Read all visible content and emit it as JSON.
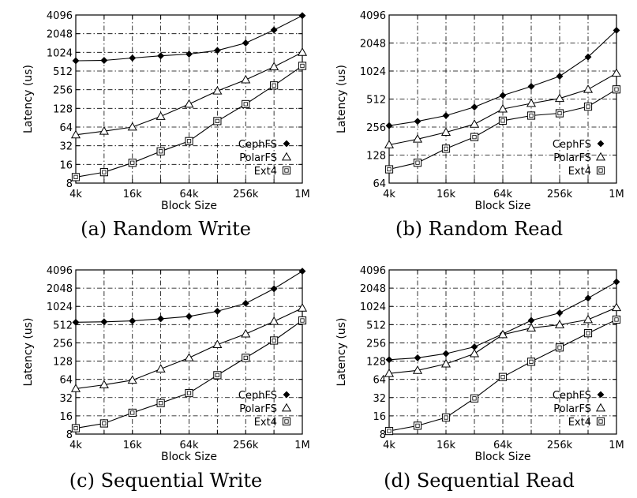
{
  "chart_data": [
    {
      "type": "line",
      "caption": "(a) Random Write",
      "xlabel": "Block Size",
      "ylabel": "Latency (us)",
      "x_scale": "log2",
      "y_scale": "log2",
      "xlim": [
        4,
        1024
      ],
      "ylim": [
        8,
        4096
      ],
      "x_ticks": [
        "4k",
        "16k",
        "64k",
        "256k",
        "1M"
      ],
      "y_ticks": [
        "8",
        "16",
        "32",
        "64",
        "128",
        "256",
        "512",
        "1024",
        "2048",
        "4096"
      ],
      "grid": true,
      "legend_position": "lower-right",
      "x": [
        4,
        8,
        16,
        32,
        64,
        128,
        256,
        512,
        1024
      ],
      "series": [
        {
          "name": "CephFS",
          "marker": "diamond",
          "values": [
            750,
            760,
            830,
            900,
            960,
            1100,
            1450,
            2350,
            4000
          ]
        },
        {
          "name": "PolarFS",
          "marker": "triangle",
          "values": [
            48,
            55,
            64,
            95,
            150,
            245,
            370,
            600,
            1024
          ]
        },
        {
          "name": "Ext4",
          "marker": "square",
          "values": [
            10,
            12,
            17,
            26,
            38,
            80,
            150,
            300,
            620
          ]
        }
      ]
    },
    {
      "type": "line",
      "caption": "(b) Random Read",
      "xlabel": "Block Size",
      "ylabel": "Latency (us)",
      "x_scale": "log2",
      "y_scale": "log2",
      "xlim": [
        4,
        1024
      ],
      "ylim": [
        64,
        4096
      ],
      "x_ticks": [
        "4k",
        "16k",
        "64k",
        "256k",
        "1M"
      ],
      "y_ticks": [
        "64",
        "128",
        "256",
        "512",
        "1024",
        "2048",
        "4096"
      ],
      "grid": true,
      "legend_position": "lower-right",
      "x": [
        4,
        8,
        16,
        32,
        64,
        128,
        256,
        512,
        1024
      ],
      "series": [
        {
          "name": "CephFS",
          "marker": "diamond",
          "values": [
            265,
            295,
            340,
            420,
            560,
            700,
            900,
            1450,
            2800
          ]
        },
        {
          "name": "PolarFS",
          "marker": "triangle",
          "values": [
            165,
            190,
            225,
            275,
            400,
            460,
            520,
            650,
            970
          ]
        },
        {
          "name": "Ext4",
          "marker": "square",
          "values": [
            90,
            106,
            150,
            200,
            300,
            340,
            360,
            425,
            650
          ]
        }
      ]
    },
    {
      "type": "line",
      "caption": "(c) Sequential Write",
      "xlabel": "Block Size",
      "ylabel": "Latency (us)",
      "x_scale": "log2",
      "y_scale": "log2",
      "xlim": [
        4,
        1024
      ],
      "ylim": [
        8,
        4096
      ],
      "x_ticks": [
        "4k",
        "16k",
        "64k",
        "256k",
        "1M"
      ],
      "y_ticks": [
        "8",
        "16",
        "32",
        "64",
        "128",
        "256",
        "512",
        "1024",
        "2048",
        "4096"
      ],
      "grid": true,
      "legend_position": "lower-right",
      "x": [
        4,
        8,
        16,
        32,
        64,
        128,
        256,
        512,
        1024
      ],
      "series": [
        {
          "name": "CephFS",
          "marker": "diamond",
          "values": [
            560,
            570,
            590,
            640,
            700,
            850,
            1150,
            2000,
            3900
          ]
        },
        {
          "name": "PolarFS",
          "marker": "triangle",
          "values": [
            45,
            52,
            62,
            95,
            145,
            240,
            360,
            580,
            960
          ]
        },
        {
          "name": "Ext4",
          "marker": "square",
          "values": [
            10,
            12,
            18,
            26,
            38,
            75,
            145,
            280,
            600
          ]
        }
      ]
    },
    {
      "type": "line",
      "caption": "(d) Sequential Read",
      "xlabel": "Block Size",
      "ylabel": "Latency (us)",
      "x_scale": "log2",
      "y_scale": "log2",
      "xlim": [
        4,
        1024
      ],
      "ylim": [
        8,
        4096
      ],
      "x_ticks": [
        "4k",
        "16k",
        "64k",
        "256k",
        "1M"
      ],
      "y_ticks": [
        "8",
        "16",
        "32",
        "64",
        "128",
        "256",
        "512",
        "1024",
        "2048",
        "4096"
      ],
      "grid": true,
      "legend_position": "lower-right",
      "x": [
        4,
        8,
        16,
        32,
        64,
        128,
        256,
        512,
        1024
      ],
      "series": [
        {
          "name": "CephFS",
          "marker": "diamond",
          "values": [
            135,
            145,
            170,
            220,
            360,
            600,
            800,
            1400,
            2600
          ]
        },
        {
          "name": "PolarFS",
          "marker": "triangle",
          "values": [
            80,
            90,
            115,
            170,
            350,
            450,
            510,
            620,
            980
          ]
        },
        {
          "name": "Ext4",
          "marker": "square",
          "values": [
            9,
            11,
            15,
            31,
            70,
            125,
            215,
            370,
            620
          ]
        }
      ]
    }
  ]
}
